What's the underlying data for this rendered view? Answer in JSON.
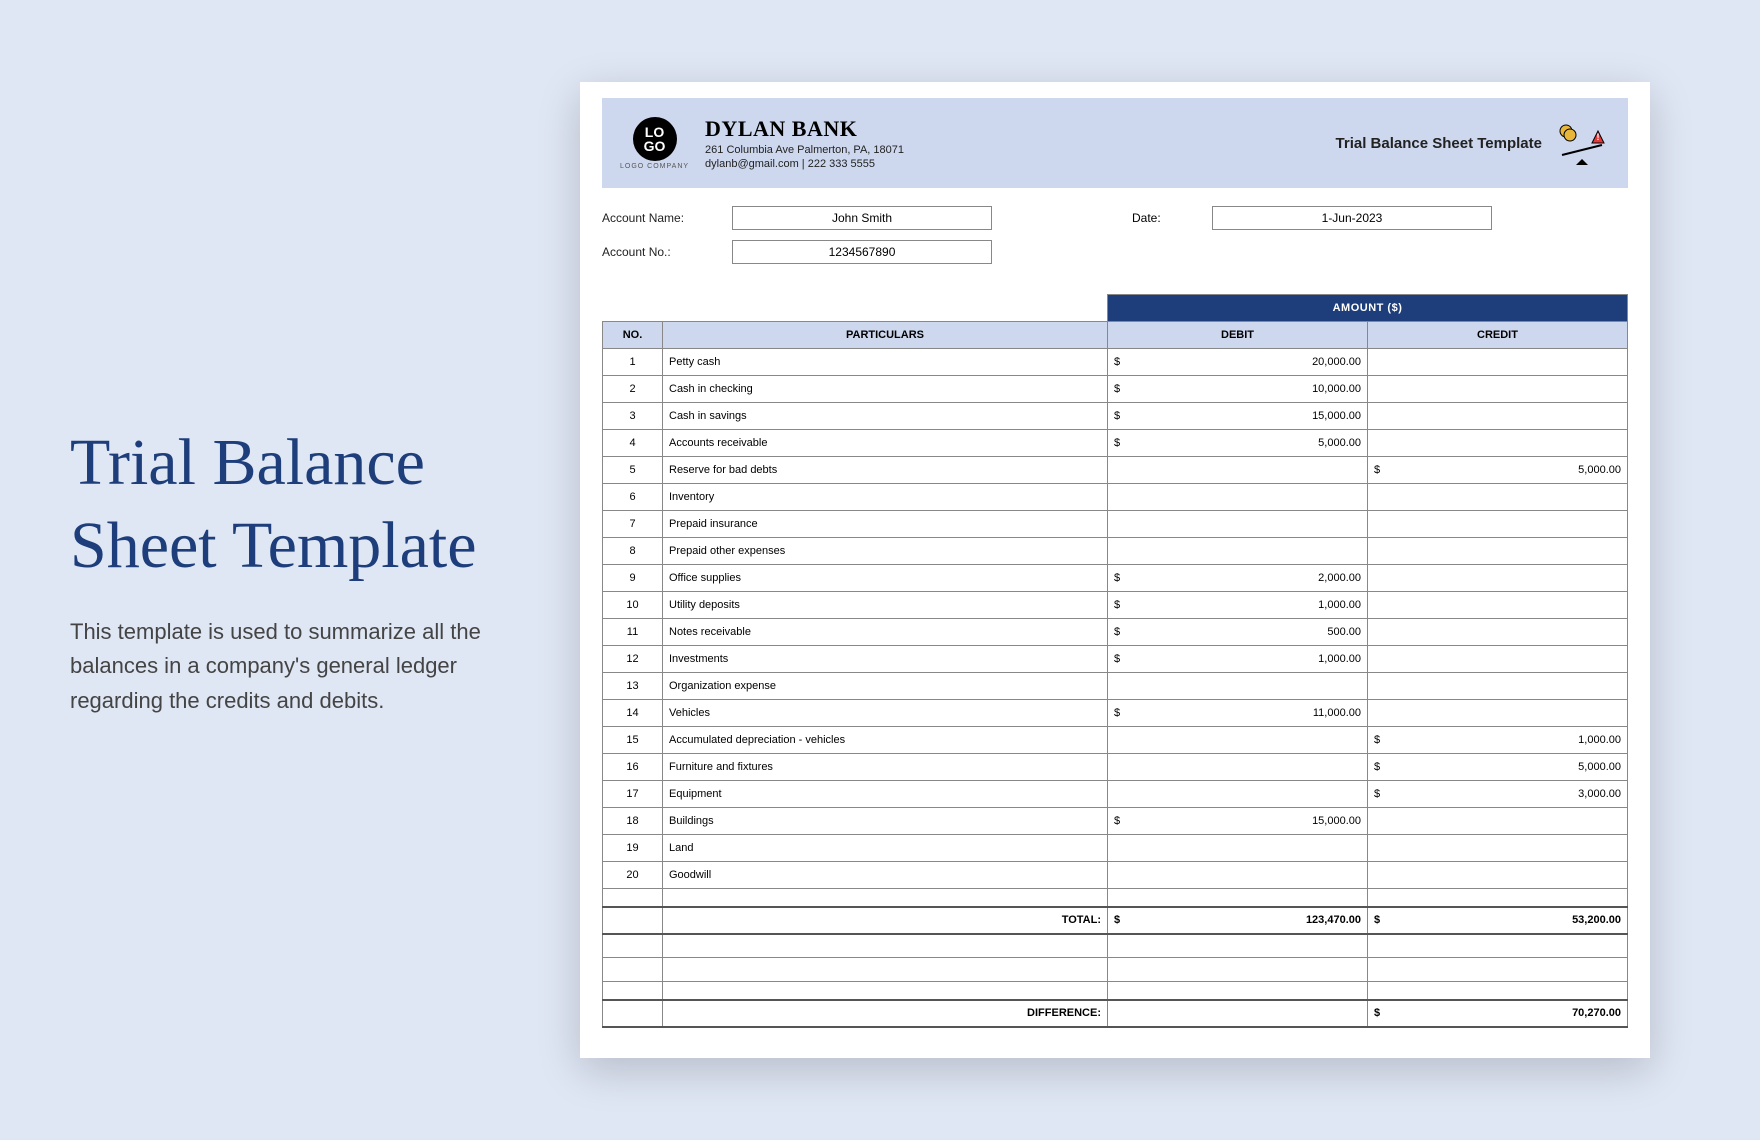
{
  "left": {
    "title_l1": "Trial Balance",
    "title_l2": "Sheet Template",
    "description": "This template is used to summarize all the balances in a company's general ledger regarding the credits and debits."
  },
  "colors": {
    "page_bg": "#dfe6f4",
    "header_bg": "#cdd8ef",
    "accent_dark": "#1d3e7a",
    "border": "#888888",
    "subhead_bg": "#cdd8ef",
    "sheet_bg": "#ffffff"
  },
  "header": {
    "logo_top": "LO",
    "logo_bot": "GO",
    "logo_sub": "LOGO COMPANY",
    "bank_name": "DYLAN BANK",
    "address": "261 Columbia Ave Palmerton, PA, 18071",
    "contact": "dylanb@gmail.com | 222 333 5555",
    "template_label": "Trial Balance Sheet Template"
  },
  "meta": {
    "account_name_label": "Account Name:",
    "account_name": "John Smith",
    "date_label": "Date:",
    "date": "1-Jun-2023",
    "account_no_label": "Account No.:",
    "account_no": "1234567890"
  },
  "table": {
    "amount_header": "AMOUNT ($)",
    "col_no": "NO.",
    "col_part": "PARTICULARS",
    "col_debit": "DEBIT",
    "col_credit": "CREDIT",
    "currency": "$",
    "total_label": "TOTAL:",
    "diff_label": "DIFFERENCE:",
    "total_debit": "123,470.00",
    "total_credit": "53,200.00",
    "difference": "70,270.00",
    "rows": [
      {
        "no": "1",
        "part": "Petty cash",
        "debit": "20,000.00",
        "credit": ""
      },
      {
        "no": "2",
        "part": "Cash in checking",
        "debit": "10,000.00",
        "credit": ""
      },
      {
        "no": "3",
        "part": "Cash in savings",
        "debit": "15,000.00",
        "credit": ""
      },
      {
        "no": "4",
        "part": "Accounts receivable",
        "debit": "5,000.00",
        "credit": ""
      },
      {
        "no": "5",
        "part": "Reserve for bad debts",
        "debit": "",
        "credit": "5,000.00"
      },
      {
        "no": "6",
        "part": "Inventory",
        "debit": "",
        "credit": ""
      },
      {
        "no": "7",
        "part": "Prepaid insurance",
        "debit": "",
        "credit": ""
      },
      {
        "no": "8",
        "part": "Prepaid other expenses",
        "debit": "",
        "credit": ""
      },
      {
        "no": "9",
        "part": "Office supplies",
        "debit": "2,000.00",
        "credit": ""
      },
      {
        "no": "10",
        "part": "Utility deposits",
        "debit": "1,000.00",
        "credit": ""
      },
      {
        "no": "11",
        "part": "Notes receivable",
        "debit": "500.00",
        "credit": ""
      },
      {
        "no": "12",
        "part": "Investments",
        "debit": "1,000.00",
        "credit": ""
      },
      {
        "no": "13",
        "part": "Organization expense",
        "debit": "",
        "credit": ""
      },
      {
        "no": "14",
        "part": "Vehicles",
        "debit": "11,000.00",
        "credit": ""
      },
      {
        "no": "15",
        "part": "Accumulated depreciation - vehicles",
        "debit": "",
        "credit": "1,000.00"
      },
      {
        "no": "16",
        "part": "Furniture and fixtures",
        "debit": "",
        "credit": "5,000.00"
      },
      {
        "no": "17",
        "part": "Equipment",
        "debit": "",
        "credit": "3,000.00"
      },
      {
        "no": "18",
        "part": "Buildings",
        "debit": "15,000.00",
        "credit": ""
      },
      {
        "no": "19",
        "part": "Land",
        "debit": "",
        "credit": ""
      },
      {
        "no": "20",
        "part": "Goodwill",
        "debit": "",
        "credit": ""
      }
    ]
  }
}
